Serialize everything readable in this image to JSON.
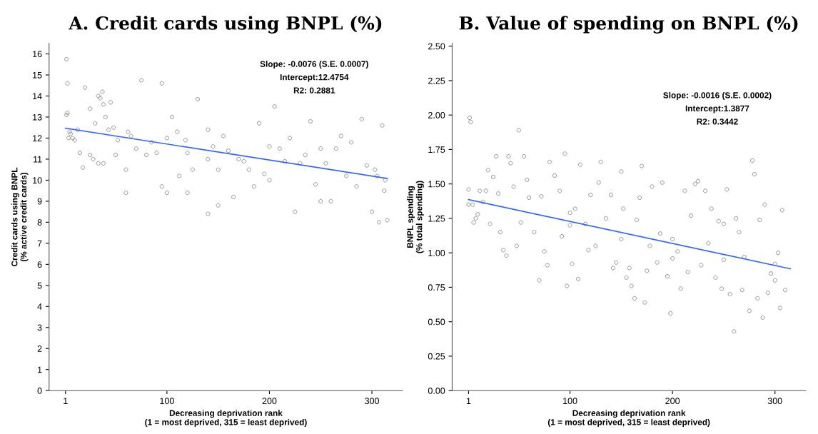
{
  "chart_data": [
    {
      "type": "scatter",
      "title": "A. Credit cards using BNPL (%)",
      "xlabel": "Decreasing deprivation rank\n(1 = most deprived, 315 = least deprived)",
      "ylabel": "Credit cards using BNPL\n(% active credit cards)",
      "annotations": [
        "Slope: -0.0076 (S.E. 0.0007)",
        "Intercept:12.4754",
        "R2: 0.2881"
      ],
      "xlim": [
        -15,
        330
      ],
      "xticks": [
        1,
        100,
        200,
        300
      ],
      "ylim": [
        0,
        16.5
      ],
      "yticks": [
        0,
        1,
        2,
        3,
        4,
        5,
        6,
        7,
        8,
        9,
        10,
        11,
        12,
        13,
        14,
        15,
        16
      ],
      "grid": false,
      "series": [
        {
          "marker": "circle",
          "color": "#808080",
          "x": [
            2,
            3,
            3,
            2,
            5,
            6,
            4,
            8,
            10,
            13,
            20,
            25,
            30,
            33,
            35,
            37,
            38,
            40,
            43,
            45,
            48,
            50,
            52,
            18,
            15,
            25,
            28,
            33,
            38,
            60,
            62,
            65,
            70,
            75,
            80,
            85,
            90,
            95,
            100,
            105,
            110,
            112,
            118,
            120,
            125,
            130,
            140,
            145,
            150,
            155,
            160,
            165,
            170,
            175,
            180,
            185,
            190,
            195,
            200,
            205,
            210,
            215,
            220,
            225,
            230,
            235,
            240,
            245,
            250,
            255,
            260,
            265,
            270,
            275,
            280,
            285,
            290,
            295,
            300,
            303,
            305,
            307,
            310,
            312,
            313,
            315,
            95,
            150,
            140,
            100,
            60,
            200,
            250,
            140,
            120
          ],
          "values": [
            15.75,
            14.6,
            13.2,
            13.1,
            12.3,
            12.2,
            12.0,
            12.0,
            11.9,
            12.4,
            14.4,
            13.4,
            12.7,
            14.0,
            13.9,
            14.2,
            13.6,
            13.0,
            12.4,
            13.7,
            12.5,
            11.2,
            11.9,
            10.6,
            11.3,
            11.2,
            11.0,
            10.8,
            10.8,
            10.5,
            12.3,
            12.1,
            11.5,
            14.75,
            11.2,
            11.8,
            11.3,
            14.6,
            12.0,
            13.0,
            12.3,
            10.2,
            11.9,
            9.4,
            10.5,
            13.85,
            12.4,
            11.6,
            10.5,
            12.1,
            11.4,
            9.2,
            11.0,
            10.9,
            10.5,
            9.7,
            12.7,
            10.3,
            11.6,
            13.5,
            11.5,
            10.9,
            12.0,
            8.5,
            10.8,
            11.2,
            12.8,
            9.8,
            11.5,
            10.8,
            9.0,
            11.5,
            12.1,
            10.2,
            11.8,
            9.7,
            12.9,
            10.7,
            8.5,
            10.5,
            10.2,
            8.0,
            12.6,
            9.5,
            10.0,
            8.1,
            9.7,
            8.8,
            8.4,
            9.4,
            9.4,
            10.0,
            9.0,
            11.0,
            11.3
          ]
        },
        {
          "type": "line",
          "color": "#3366ff",
          "x": [
            1,
            315
          ],
          "values": [
            12.47,
            10.08
          ]
        }
      ]
    },
    {
      "type": "scatter",
      "title": "B. Value of spending on BNPL (%)",
      "xlabel": "Decreasing deprivation rank\n(1 = most deprived, 315 = least deprived)",
      "ylabel": "BNPL spending\n(% total spending)",
      "annotations": [
        "Slope: -0.0016 (S.E. 0.0002)",
        "Intercept:1.3877",
        "R2: 0.3442"
      ],
      "xlim": [
        -15,
        330
      ],
      "xticks": [
        1,
        100,
        200,
        300
      ],
      "ylim": [
        0,
        2.52
      ],
      "yticks": [
        {
          "value": 0,
          "label": "0.00"
        },
        {
          "value": 0.25,
          "label": "0.25"
        },
        {
          "value": 0.5,
          "label": "0.50"
        },
        {
          "value": 0.75,
          "label": "0.75"
        },
        {
          "value": 1,
          "label": "1.00"
        },
        {
          "value": 1.25,
          "label": "1.25"
        },
        {
          "value": 1.5,
          "label": "1.50"
        },
        {
          "value": 1.75,
          "label": "1.75"
        },
        {
          "value": 2,
          "label": "2.00"
        },
        {
          "value": 2.25,
          "label": "2.25"
        },
        {
          "value": 2.5,
          "label": "2.50"
        }
      ],
      "grid": false,
      "series": [
        {
          "marker": "circle",
          "color": "#808080",
          "x": [
            1,
            2,
            3,
            1,
            5,
            6,
            8,
            10,
            12,
            15,
            18,
            20,
            22,
            25,
            28,
            30,
            32,
            35,
            38,
            40,
            42,
            45,
            48,
            50,
            52,
            55,
            58,
            60,
            65,
            70,
            72,
            75,
            78,
            80,
            85,
            90,
            92,
            95,
            97,
            100,
            102,
            105,
            108,
            110,
            115,
            118,
            120,
            125,
            128,
            130,
            135,
            140,
            142,
            145,
            150,
            152,
            155,
            158,
            160,
            163,
            165,
            168,
            170,
            173,
            175,
            178,
            180,
            185,
            188,
            190,
            195,
            198,
            200,
            205,
            208,
            212,
            215,
            218,
            222,
            225,
            228,
            232,
            235,
            238,
            242,
            245,
            248,
            250,
            253,
            256,
            260,
            262,
            265,
            268,
            270,
            275,
            278,
            280,
            283,
            285,
            288,
            290,
            293,
            296,
            300,
            303,
            305,
            307,
            310,
            200,
            150,
            250,
            100,
            300
          ],
          "values": [
            1.46,
            1.98,
            1.95,
            1.35,
            1.35,
            1.22,
            1.25,
            1.28,
            1.45,
            1.37,
            1.45,
            1.6,
            1.21,
            1.55,
            1.7,
            1.43,
            1.15,
            1.02,
            0.98,
            1.7,
            1.65,
            1.48,
            1.05,
            1.89,
            1.22,
            1.7,
            1.53,
            1.4,
            1.15,
            0.8,
            1.41,
            1.01,
            0.91,
            1.66,
            1.56,
            1.45,
            1.12,
            1.72,
            0.76,
            1.29,
            0.92,
            1.32,
            0.81,
            1.64,
            1.21,
            1.02,
            1.42,
            1.05,
            1.51,
            1.66,
            1.25,
            1.42,
            0.89,
            0.93,
            1.59,
            1.32,
            0.82,
            0.89,
            0.76,
            0.67,
            1.24,
            1.4,
            1.63,
            0.64,
            0.87,
            1.05,
            1.48,
            0.93,
            1.14,
            1.51,
            0.83,
            0.56,
            0.96,
            1.01,
            0.74,
            1.45,
            0.86,
            1.27,
            1.5,
            1.52,
            0.91,
            1.45,
            1.07,
            1.32,
            0.82,
            1.23,
            0.74,
            1.21,
            1.46,
            0.7,
            0.43,
            1.25,
            1.15,
            0.73,
            0.97,
            0.58,
            1.67,
            1.57,
            0.67,
            1.24,
            0.53,
            1.35,
            0.71,
            0.85,
            0.8,
            1.0,
            0.6,
            1.31,
            0.73,
            1.1,
            1.1,
            0.95,
            1.2,
            0.92
          ]
        },
        {
          "type": "line",
          "color": "#3366ff",
          "x": [
            1,
            315
          ],
          "values": [
            1.386,
            0.884
          ]
        }
      ]
    }
  ]
}
